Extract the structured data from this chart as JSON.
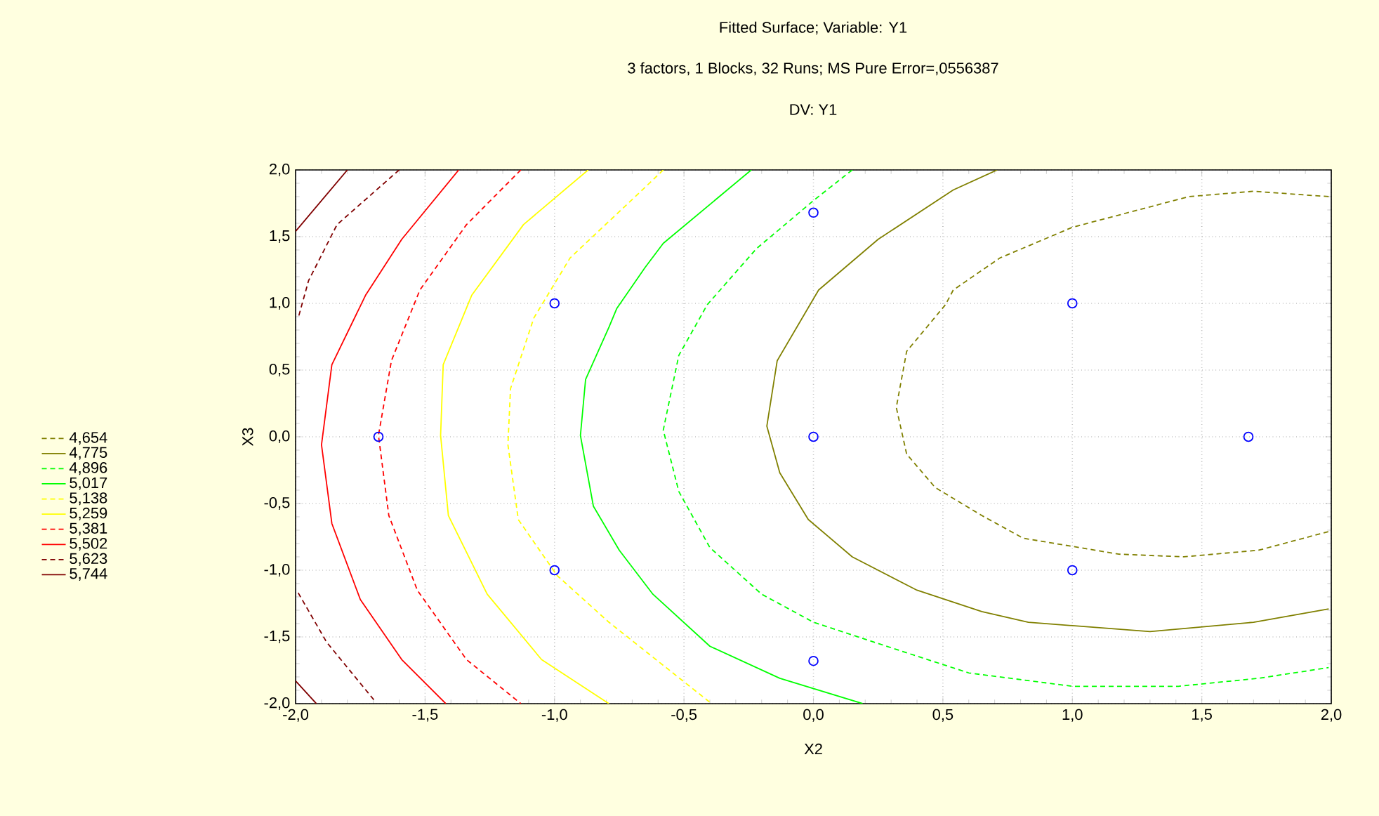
{
  "chart_data": {
    "type": "line",
    "title": "Fitted Surface; Variable: Y1",
    "subtitle": "3 factors, 1 Blocks, 32 Runs; MS Pure Error=,0556387",
    "annotations": [
      "DV: Y1"
    ],
    "xlabel": "X2",
    "ylabel": "X3",
    "xlim": [
      -2,
      2
    ],
    "ylim": [
      -2,
      2
    ],
    "xticks": [
      {
        "value": -2,
        "label": "-2,0"
      },
      {
        "value": -1.5,
        "label": "-1,5"
      },
      {
        "value": -1,
        "label": "-1,0"
      },
      {
        "value": -0.5,
        "label": "-0,5"
      },
      {
        "value": 0,
        "label": "0,0"
      },
      {
        "value": 0.5,
        "label": "0,5"
      },
      {
        "value": 1,
        "label": "1,0"
      },
      {
        "value": 1.5,
        "label": "1,5"
      },
      {
        "value": 2,
        "label": "2,0"
      }
    ],
    "yticks": [
      {
        "value": -2,
        "label": "-2,0"
      },
      {
        "value": -1.5,
        "label": "-1,5"
      },
      {
        "value": -1,
        "label": "-1,0"
      },
      {
        "value": -0.5,
        "label": "-0,5"
      },
      {
        "value": 0,
        "label": "0,0"
      },
      {
        "value": 0.5,
        "label": "0,5"
      },
      {
        "value": 1,
        "label": "1,0"
      },
      {
        "value": 1.5,
        "label": "1,5"
      },
      {
        "value": 2,
        "label": "2,0"
      }
    ],
    "grid": true,
    "legend": "left",
    "marker": "none",
    "series": [
      {
        "name": "4,654",
        "color": "#808000",
        "line_style": "dashed",
        "x": [
          1.99,
          1.7,
          1.45,
          1.0,
          0.72,
          0.54,
          0.51,
          0.36,
          0.32,
          0.36,
          0.47,
          0.65,
          0.81,
          1.18,
          1.43,
          1.72,
          1.99
        ],
        "values": [
          1.8,
          1.84,
          1.8,
          1.57,
          1.34,
          1.1,
          0.99,
          0.64,
          0.22,
          -0.13,
          -0.38,
          -0.59,
          -0.76,
          -0.88,
          -0.9,
          -0.85,
          -0.71
        ]
      },
      {
        "name": "4,775",
        "color": "#808000",
        "line_style": "solid",
        "x": [
          0.71,
          0.54,
          0.25,
          0.02,
          -0.14,
          -0.18,
          -0.13,
          -0.02,
          0.15,
          0.4,
          0.65,
          0.83,
          1.3,
          1.7,
          1.99
        ],
        "values": [
          2.0,
          1.85,
          1.48,
          1.1,
          0.57,
          0.08,
          -0.27,
          -0.62,
          -0.9,
          -1.15,
          -1.31,
          -1.39,
          -1.46,
          -1.39,
          -1.29
        ]
      },
      {
        "name": "4,896",
        "color": "#00ff00",
        "line_style": "dashed",
        "x": [
          0.15,
          0.0,
          -0.22,
          -0.41,
          -0.52,
          -0.58,
          -0.52,
          -0.4,
          -0.2,
          0.0,
          0.33,
          0.6,
          1.0,
          1.41,
          1.72,
          1.99
        ],
        "values": [
          2.0,
          1.77,
          1.41,
          0.99,
          0.61,
          0.05,
          -0.41,
          -0.83,
          -1.18,
          -1.39,
          -1.6,
          -1.77,
          -1.87,
          -1.87,
          -1.81,
          -1.73
        ]
      },
      {
        "name": "5,017",
        "color": "#00ff00",
        "line_style": "solid",
        "x": [
          -0.24,
          -0.58,
          -0.65,
          -0.76,
          -0.79,
          -0.88,
          -0.9,
          -0.85,
          -0.75,
          -0.62,
          -0.4,
          -0.13,
          0.19
        ],
        "values": [
          2.0,
          1.45,
          1.27,
          0.96,
          0.82,
          0.43,
          0.01,
          -0.52,
          -0.85,
          -1.18,
          -1.57,
          -1.81,
          -2.0
        ]
      },
      {
        "name": "5,138",
        "color": "#ffff00",
        "line_style": "dashed",
        "x": [
          -0.58,
          -0.65,
          -0.94,
          -1.08,
          -1.17,
          -1.18,
          -1.14,
          -0.99,
          -0.79,
          -0.4
        ],
        "values": [
          2.0,
          1.87,
          1.34,
          0.89,
          0.36,
          -0.06,
          -0.62,
          -1.04,
          -1.39,
          -1.99
        ]
      },
      {
        "name": "5,259",
        "color": "#ffff00",
        "line_style": "solid",
        "x": [
          -0.87,
          -1.12,
          -1.32,
          -1.43,
          -1.44,
          -1.41,
          -1.26,
          -1.05,
          -0.79
        ],
        "values": [
          2.0,
          1.59,
          1.06,
          0.54,
          0.01,
          -0.59,
          -1.18,
          -1.67,
          -2.0
        ]
      },
      {
        "name": "5,381",
        "color": "#ff0000",
        "line_style": "dashed",
        "x": [
          -1.13,
          -1.34,
          -1.52,
          -1.63,
          -1.68,
          -1.64,
          -1.53,
          -1.34,
          -1.13
        ],
        "values": [
          2.0,
          1.59,
          1.1,
          0.57,
          0.01,
          -0.59,
          -1.15,
          -1.67,
          -2.0
        ]
      },
      {
        "name": "5,502",
        "color": "#ff0000",
        "line_style": "solid",
        "x": [
          -1.37,
          -1.59,
          -1.73,
          -1.86,
          -1.9,
          -1.86,
          -1.75,
          -1.59,
          -1.42
        ],
        "values": [
          2.0,
          1.48,
          1.06,
          0.54,
          -0.06,
          -0.65,
          -1.22,
          -1.67,
          -2.0
        ]
      },
      {
        "name": "5,623",
        "color": "#800000",
        "line_style": "dashed",
        "x": [
          -1.6,
          -1.84,
          -1.95,
          -1.99,
          null,
          -1.99,
          -1.88,
          -1.69
        ],
        "values": [
          2.0,
          1.59,
          1.17,
          0.89,
          null,
          -1.17,
          -1.54,
          -1.99
        ]
      },
      {
        "name": "5,744",
        "color": "#800000",
        "line_style": "solid",
        "x": [
          -1.8,
          -2.0,
          null,
          -2.0,
          -1.92
        ],
        "values": [
          2.0,
          1.54,
          null,
          -1.83,
          -2.0
        ]
      },
      {
        "type": "scatter",
        "marker": "circle",
        "color": "#0000ff",
        "x": [
          -1,
          -1,
          1,
          1,
          0,
          0,
          -1.68,
          1.68,
          0
        ],
        "values": [
          1,
          -1,
          1,
          -1,
          1.68,
          -1.68,
          0,
          0,
          0
        ]
      }
    ]
  }
}
